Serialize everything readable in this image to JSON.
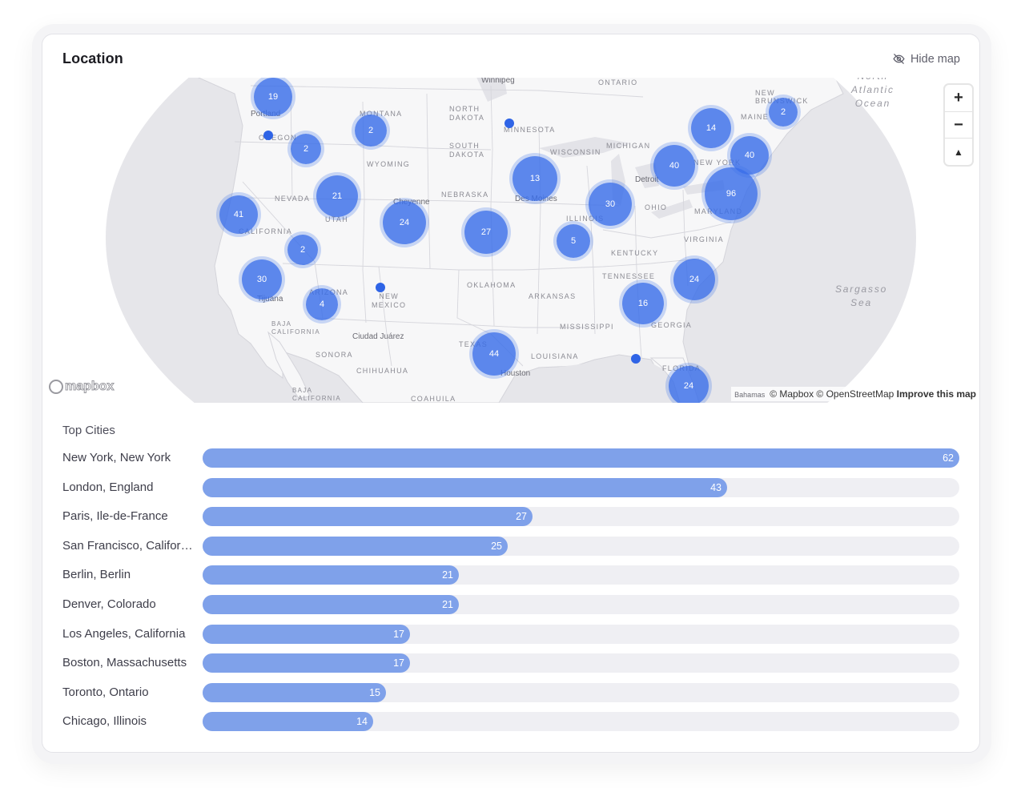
{
  "header": {
    "title": "Location",
    "hide_map_label": "Hide map"
  },
  "map": {
    "clusters": [
      {
        "count": "19"
      },
      {
        "count": "2"
      },
      {
        "count": "2"
      },
      {
        "count": "21"
      },
      {
        "count": "41"
      },
      {
        "count": "24"
      },
      {
        "count": "27"
      },
      {
        "count": "13"
      },
      {
        "count": "2"
      },
      {
        "count": "30"
      },
      {
        "count": "4"
      },
      {
        "count": "5"
      },
      {
        "count": "30"
      },
      {
        "count": "40"
      },
      {
        "count": "14"
      },
      {
        "count": "40"
      },
      {
        "count": "96"
      },
      {
        "count": "2"
      },
      {
        "count": "24"
      },
      {
        "count": "16"
      },
      {
        "count": "44"
      },
      {
        "count": "24"
      }
    ],
    "region_labels": [
      "ONTARIO",
      "MONTANA",
      "NORTH\nDAKOTA",
      "MINNESOTA",
      "SOUTH\nDAKOTA",
      "WYOMING",
      "WISCONSIN",
      "MICHIGAN",
      "NEBRASKA",
      "NEVADA",
      "UTAH",
      "CALIFORNIA",
      "ILLINOIS",
      "OHIO",
      "NEW YORK",
      "MAINE",
      "NEW\nBRUNSWICK",
      "MARYLAND",
      "VIRGINIA",
      "KENTUCKY",
      "TENNESSEE",
      "OKLAHOMA",
      "ARKANSAS",
      "ARIZONA",
      "NEW\nMEXICO",
      "MISSISSIPPI",
      "GEORGIA",
      "TEXAS",
      "LOUISIANA",
      "FLORIDA",
      "SONORA",
      "CHIHUAHUA",
      "BAJA\nCALIFORNIA",
      "BAJA\nCALIFORNIA",
      "COAHUILA",
      "OREGON"
    ],
    "city_labels": [
      "Winnipeg",
      "Portland",
      "Cheyenne",
      "Des Moines",
      "Detroit",
      "Tijuana",
      "Ciudad Juárez",
      "Houston"
    ],
    "ocean_labels": [
      "North\nAtlantic\nOcean",
      "Sargasso\nSea"
    ],
    "controls": {
      "zoom_in": "+",
      "zoom_out": "−",
      "compass": "▲"
    },
    "logo_text": "mapbox",
    "attribution": {
      "bahamas": "Bahamas",
      "copyright": "© Mapbox © OpenStreetMap",
      "improve": "Improve this map"
    }
  },
  "top_cities": {
    "title": "Top Cities",
    "max_value": 62,
    "items": [
      {
        "name": "New York, New York",
        "value": 62
      },
      {
        "name": "London, England",
        "value": 43
      },
      {
        "name": "Paris, Ile-de-France",
        "value": 27
      },
      {
        "name": "San Francisco, Californ...",
        "value": 25
      },
      {
        "name": "Berlin, Berlin",
        "value": 21
      },
      {
        "name": "Denver, Colorado",
        "value": 21
      },
      {
        "name": "Los Angeles, California",
        "value": 17
      },
      {
        "name": "Boston, Massachusetts",
        "value": 17
      },
      {
        "name": "Toronto, Ontario",
        "value": 15
      },
      {
        "name": "Chicago, Illinois",
        "value": 14
      }
    ]
  },
  "colors": {
    "cluster": "#396ee9",
    "bar_fill": "#7fa1ea",
    "bar_track": "#efeff3"
  }
}
